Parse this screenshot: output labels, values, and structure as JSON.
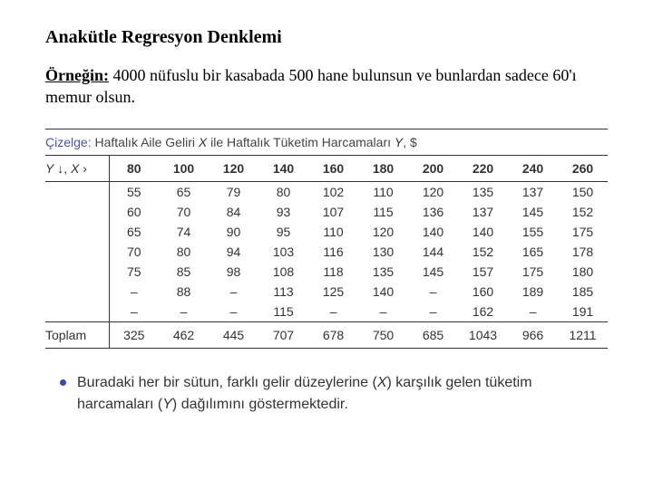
{
  "heading": "Anakütle Regresyon Denklemi",
  "intro_lead": "Örneğin:",
  "intro_rest": " 4000 nüfuslu bir kasabada 500 hane bulunsun ve bunlardan sadece 60'ı memur olsun.",
  "table": {
    "caption_label": "Çizelge:",
    "caption_text_a": " Haftalık Aile Geliri ",
    "caption_x": "X",
    "caption_text_b": " ile Haftalık Tüketim Harcamaları ",
    "caption_y": "Y",
    "caption_text_c": ", $",
    "yx_header_y": "Y",
    "yx_arrow_down": " ↓, ",
    "yx_header_x": "X",
    "yx_arrow_right": " ›",
    "col_headers": [
      "80",
      "100",
      "120",
      "140",
      "160",
      "180",
      "200",
      "220",
      "240",
      "260"
    ],
    "rows": [
      [
        "55",
        "65",
        "79",
        "80",
        "102",
        "110",
        "120",
        "135",
        "137",
        "150"
      ],
      [
        "60",
        "70",
        "84",
        "93",
        "107",
        "115",
        "136",
        "137",
        "145",
        "152"
      ],
      [
        "65",
        "74",
        "90",
        "95",
        "110",
        "120",
        "140",
        "140",
        "155",
        "175"
      ],
      [
        "70",
        "80",
        "94",
        "103",
        "116",
        "130",
        "144",
        "152",
        "165",
        "178"
      ],
      [
        "75",
        "85",
        "98",
        "108",
        "118",
        "135",
        "145",
        "157",
        "175",
        "180"
      ],
      [
        "–",
        "88",
        "–",
        "113",
        "125",
        "140",
        "–",
        "160",
        "189",
        "185"
      ],
      [
        "–",
        "–",
        "–",
        "115",
        "–",
        "–",
        "–",
        "162",
        "–",
        "191"
      ]
    ],
    "total_label": "Toplam",
    "totals": [
      "325",
      "462",
      "445",
      "707",
      "678",
      "750",
      "685",
      "1043",
      "966",
      "1211"
    ]
  },
  "bullet_text_a": "Buradaki her bir sütun, farklı gelir düzeylerine (",
  "bullet_x": "X",
  "bullet_text_b": ") karşılık gelen tüketim harcamaları (",
  "bullet_y": "Y",
  "bullet_text_c": ") dağılımını göstermektedir."
}
